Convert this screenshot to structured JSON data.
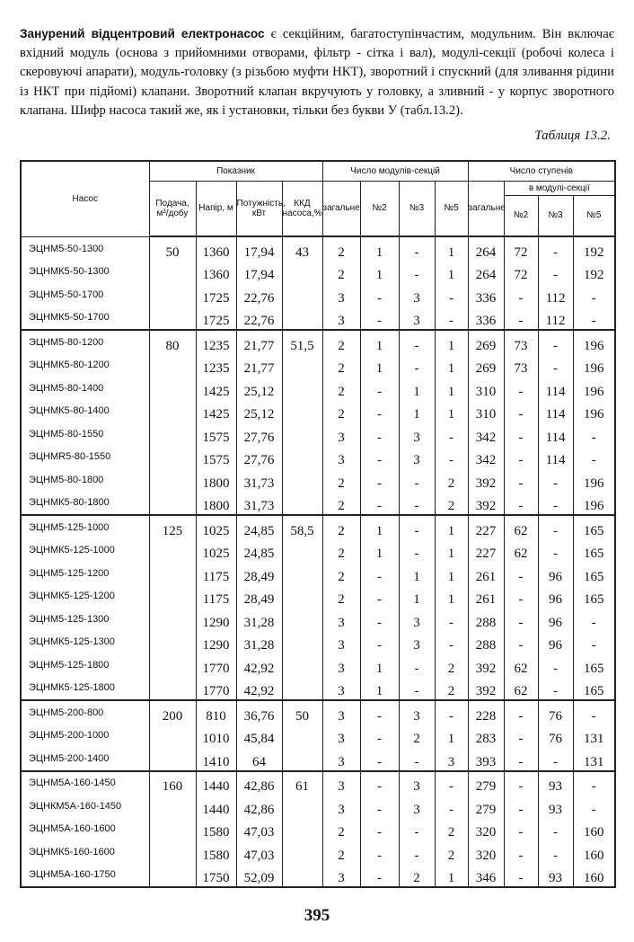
{
  "paragraph": [
    "Занурений відцентровий електронасос",
    " є секційним, багатоступінчастим, модульним. Він включає вхідний модуль (основа з прийомними отворами, фільтр - сітка і вал), модулі-секції (робочі колеса і скеровуючі апарати), модуль-головку (з різьбою муфти НКТ), зворотний і спускний (для зливання рідини із НКТ при підйомі) клапани. Зворотний клапан вкручують у головку, а зливний - у корпус зворотного клапана. Шифр насоса такий же, як і установки, тільки без букви У (табл.13.2)."
  ],
  "caption": "Таблиця 13.2.",
  "table": {
    "headers": {
      "pump": "Насос",
      "indicator": "Показник",
      "modules": "Число модулів-секцій",
      "stages": "Число ступенів",
      "feed": "Подача, м³/добу",
      "head": "Напір, м",
      "power": "Потужність, кВт",
      "efficiency": "ККД насоса,%",
      "modules_total": "загальне",
      "modules_2": "№2",
      "modules_3": "№3",
      "modules_5": "№5",
      "stages_total": "загальне",
      "stages_per_module": "в модулі-секції",
      "stages_2": "№2",
      "stages_3": "№3",
      "stages_5": "№5"
    },
    "rows": [
      [
        "ЭЦНМ5-50-1300",
        "50",
        "1360",
        "17,94",
        "43",
        "2",
        "1",
        "-",
        "1",
        "264",
        "72",
        "-",
        "192"
      ],
      [
        "ЭЦНМК5-50-1300",
        null,
        "1360",
        "17,94",
        null,
        "2",
        "1",
        "-",
        "1",
        "264",
        "72",
        "-",
        "192"
      ],
      [
        "ЭЦНМ5-50-1700",
        null,
        "1725",
        "22,76",
        null,
        "3",
        "-",
        "3",
        "-",
        "336",
        "-",
        "112",
        "-"
      ],
      [
        "ЭЦНМК5-50-1700",
        null,
        "1725",
        "22,76",
        null,
        "3",
        "-",
        "3",
        "-",
        "336",
        "-",
        "112",
        "-"
      ],
      [
        "ЭЦНМ5-80-1200",
        "80",
        "1235",
        "21,77",
        "51,5",
        "2",
        "1",
        "-",
        "1",
        "269",
        "73",
        "-",
        "196"
      ],
      [
        "ЭЦНМК5-80-1200",
        null,
        "1235",
        "21,77",
        null,
        "2",
        "1",
        "-",
        "1",
        "269",
        "73",
        "-",
        "196"
      ],
      [
        "ЭЦНМ5-80-1400",
        null,
        "1425",
        "25,12",
        null,
        "2",
        "-",
        "1",
        "1",
        "310",
        "-",
        "114",
        "196"
      ],
      [
        "ЭЦНМК5-80-1400",
        null,
        "1425",
        "25,12",
        null,
        "2",
        "-",
        "1",
        "1",
        "310",
        "-",
        "114",
        "196"
      ],
      [
        "ЭЦНМ5-80-1550",
        null,
        "1575",
        "27,76",
        null,
        "3",
        "-",
        "3",
        "-",
        "342",
        "-",
        "114",
        "-"
      ],
      [
        "ЭЦНМR5-80-1550",
        null,
        "1575",
        "27,76",
        null,
        "3",
        "-",
        "3",
        "-",
        "342",
        "-",
        "114",
        "-"
      ],
      [
        "ЭЦНМ5-80-1800",
        null,
        "1800",
        "31,73",
        null,
        "2",
        "-",
        "-",
        "2",
        "392",
        "-",
        "-",
        "196"
      ],
      [
        "ЭЦНМК5-80-1800",
        null,
        "1800",
        "31,73",
        null,
        "2",
        "-",
        "-",
        "2",
        "392",
        "-",
        "-",
        "196"
      ],
      [
        "ЭЦНМ5-125-1000",
        "125",
        "1025",
        "24,85",
        "58,5",
        "2",
        "1",
        "-",
        "1",
        "227",
        "62",
        "-",
        "165"
      ],
      [
        "ЭЦНМК5-125-1000",
        null,
        "1025",
        "24,85",
        null,
        "2",
        "1",
        "-",
        "1",
        "227",
        "62",
        "-",
        "165"
      ],
      [
        "ЭЦНМ5-125-1200",
        null,
        "1175",
        "28,49",
        null,
        "2",
        "-",
        "1",
        "1",
        "261",
        "-",
        "96",
        "165"
      ],
      [
        "ЭЦНМК5-125-1200",
        null,
        "1175",
        "28,49",
        null,
        "2",
        "-",
        "1",
        "1",
        "261",
        "-",
        "96",
        "165"
      ],
      [
        "ЭЦНМ5-125-1300",
        null,
        "1290",
        "31,28",
        null,
        "3",
        "-",
        "3",
        "-",
        "288",
        "-",
        "96",
        "-"
      ],
      [
        "ЭЦНМК5-125-1300",
        null,
        "1290",
        "31,28",
        null,
        "3",
        "-",
        "3",
        "-",
        "288",
        "-",
        "96",
        "-"
      ],
      [
        "ЭЦНМ5-125-1800",
        null,
        "1770",
        "42,92",
        null,
        "3",
        "1",
        "-",
        "2",
        "392",
        "62",
        "-",
        "165"
      ],
      [
        "ЭЦНМК5-125-1800",
        null,
        "1770",
        "42,92",
        null,
        "3",
        "1",
        "-",
        "2",
        "392",
        "62",
        "-",
        "165"
      ],
      [
        "ЭЦНМ5-200-800",
        "200",
        "810",
        "36,76",
        "50",
        "3",
        "-",
        "3",
        "-",
        "228",
        "-",
        "76",
        "-"
      ],
      [
        "ЭЦНМ5-200-1000",
        null,
        "1010",
        "45,84",
        null,
        "3",
        "-",
        "2",
        "1",
        "283",
        "-",
        "76",
        "131"
      ],
      [
        "ЭЦНМ5-200-1400",
        null,
        "1410",
        "64",
        null,
        "3",
        "-",
        "-",
        "3",
        "393",
        "-",
        "-",
        "131"
      ],
      [
        "ЭЦНМ5А-160-1450",
        "160",
        "1440",
        "42,86",
        "61",
        "3",
        "-",
        "3",
        "-",
        "279",
        "-",
        "93",
        "-"
      ],
      [
        "ЭЦНКМ5А-160-1450",
        null,
        "1440",
        "42,86",
        null,
        "3",
        "-",
        "3",
        "-",
        "279",
        "-",
        "93",
        "-"
      ],
      [
        "ЭЦНМ5А-160-1600",
        null,
        "1580",
        "47,03",
        null,
        "2",
        "-",
        "-",
        "2",
        "320",
        "-",
        "-",
        "160"
      ],
      [
        "ЭЦНМК5-160-1600",
        null,
        "1580",
        "47,03",
        null,
        "2",
        "-",
        "-",
        "2",
        "320",
        "-",
        "-",
        "160"
      ],
      [
        "ЭЦНМ5А-160-1750",
        null,
        "1750",
        "52,09",
        null,
        "3",
        "-",
        "2",
        "1",
        "346",
        "-",
        "93",
        "160"
      ]
    ]
  },
  "page_number": "395"
}
